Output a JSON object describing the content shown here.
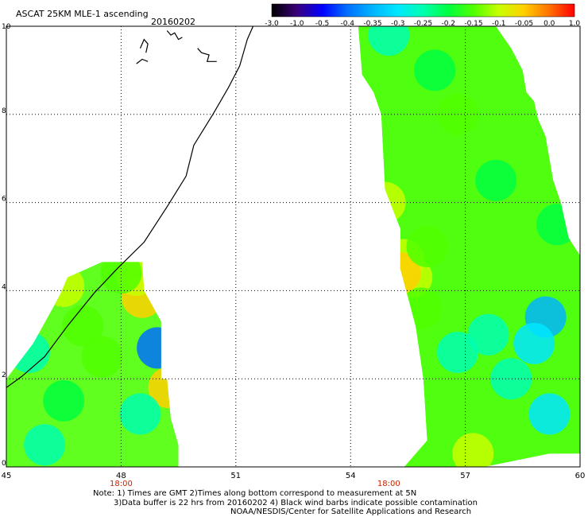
{
  "chart_data": {
    "type": "heatmap",
    "title": "ASCAT 25KM MLE-1 ascending",
    "date": "20160202",
    "colorbar": {
      "tick_labels": [
        "-3.0",
        "-1.0",
        "-0.5",
        "-0.4",
        "-0.35",
        "-0.3",
        "-0.25",
        "-0.2",
        "-0.15",
        "-0.1",
        "-0.05",
        "0.0",
        "1.0"
      ],
      "colors": [
        "#000000",
        "#3a007a",
        "#0000ff",
        "#0070ff",
        "#00b4ff",
        "#00e8ff",
        "#00ffb0",
        "#00ff40",
        "#50ff00",
        "#c8ff00",
        "#ffd000",
        "#ff7000",
        "#ff0000"
      ]
    },
    "x_axis": {
      "range": [
        45,
        60
      ],
      "ticks": [
        45,
        48,
        51,
        54,
        57,
        60
      ],
      "tick_labels": [
        "45",
        "48",
        "51",
        "54",
        "57",
        "60"
      ],
      "time_labels": [
        {
          "x": 48,
          "text": "18:00"
        },
        {
          "x": 55,
          "text": "18:00"
        }
      ],
      "time_label_color": "#cc2200"
    },
    "y_axis": {
      "range": [
        0,
        10
      ],
      "ticks": [
        0,
        2,
        4,
        6,
        8,
        10
      ],
      "tick_labels": [
        "0",
        "2",
        "4",
        "6",
        "8",
        "10"
      ]
    },
    "grid": true,
    "swaths": [
      {
        "name": "west",
        "outline": [
          [
            45,
            0
          ],
          [
            45,
            2.0
          ],
          [
            45.7,
            2.8
          ],
          [
            46.4,
            3.9
          ],
          [
            46.6,
            4.3
          ],
          [
            47.5,
            4.65
          ],
          [
            48.55,
            4.65
          ],
          [
            48.6,
            4.0
          ],
          [
            49.05,
            3.3
          ],
          [
            49.05,
            2.0
          ],
          [
            49.2,
            2.0
          ],
          [
            49.3,
            1.1
          ],
          [
            49.5,
            0.5
          ],
          [
            49.5,
            0
          ]
        ],
        "cells": [
          {
            "lon": 48.55,
            "lat": 3.85,
            "value": -0.05
          },
          {
            "lon": 48.4,
            "lat": 4.35,
            "value": -0.1
          },
          {
            "lon": 46.5,
            "lat": 4.1,
            "value": -0.1
          },
          {
            "lon": 48.0,
            "lat": 4.4,
            "value": -0.12
          },
          {
            "lon": 48.95,
            "lat": 2.7,
            "value": -0.4
          },
          {
            "lon": 49.25,
            "lat": 1.8,
            "value": -0.05
          },
          {
            "lon": 45.6,
            "lat": 2.6,
            "value": -0.25
          },
          {
            "lon": 46.0,
            "lat": 0.5,
            "value": -0.25
          },
          {
            "lon": 46.5,
            "lat": 1.5,
            "value": -0.2
          },
          {
            "lon": 48.5,
            "lat": 1.2,
            "value": -0.25
          },
          {
            "lon": 47.5,
            "lat": 2.5,
            "value": -0.15
          },
          {
            "lon": 47.0,
            "lat": 3.2,
            "value": -0.15
          }
        ]
      },
      {
        "name": "east",
        "outline": [
          [
            55.4,
            0
          ],
          [
            56.5,
            0
          ],
          [
            57.5,
            0
          ],
          [
            59.2,
            0.3
          ],
          [
            60,
            0.3
          ],
          [
            60,
            4.8
          ],
          [
            59.7,
            5.2
          ],
          [
            59.5,
            6.0
          ],
          [
            59.3,
            6.5
          ],
          [
            59.1,
            7.5
          ],
          [
            58.9,
            7.9
          ],
          [
            58.8,
            8.3
          ],
          [
            58.6,
            8.5
          ],
          [
            58.5,
            9.0
          ],
          [
            58.2,
            9.5
          ],
          [
            57.8,
            10
          ],
          [
            56.0,
            10
          ],
          [
            54.2,
            10
          ],
          [
            54.3,
            8.9
          ],
          [
            54.6,
            8.5
          ],
          [
            54.8,
            8.0
          ],
          [
            54.9,
            6.3
          ],
          [
            55.3,
            5.4
          ],
          [
            55.3,
            4.5
          ],
          [
            55.7,
            3.2
          ],
          [
            55.9,
            2.0
          ],
          [
            56.0,
            0.6
          ]
        ],
        "cells": [
          {
            "lon": 55.4,
            "lat": 4.7,
            "value": -0.1
          },
          {
            "lon": 55.6,
            "lat": 4.3,
            "value": -0.1
          },
          {
            "lon": 55.3,
            "lat": 4.4,
            "value": -0.05
          },
          {
            "lon": 55.85,
            "lat": 3.6,
            "value": -0.12
          },
          {
            "lon": 56.0,
            "lat": 5.0,
            "value": -0.15
          },
          {
            "lon": 56.8,
            "lat": 8.0,
            "value": -0.15
          },
          {
            "lon": 56.2,
            "lat": 9.0,
            "value": -0.2
          },
          {
            "lon": 54.9,
            "lat": 6.0,
            "value": -0.1
          },
          {
            "lon": 57.2,
            "lat": 0.3,
            "value": -0.1
          },
          {
            "lon": 59.1,
            "lat": 3.4,
            "value": -0.35
          },
          {
            "lon": 58.8,
            "lat": 2.8,
            "value": -0.3
          },
          {
            "lon": 58.2,
            "lat": 2.0,
            "value": -0.25
          },
          {
            "lon": 59.2,
            "lat": 1.2,
            "value": -0.3
          },
          {
            "lon": 56.8,
            "lat": 2.6,
            "value": -0.25
          },
          {
            "lon": 57.6,
            "lat": 3.0,
            "value": -0.25
          },
          {
            "lon": 55.0,
            "lat": 9.8,
            "value": -0.25
          },
          {
            "lon": 59.4,
            "lat": 5.5,
            "value": -0.2
          },
          {
            "lon": 57.8,
            "lat": 6.5,
            "value": -0.2
          }
        ]
      }
    ],
    "coastline": [
      [
        45,
        1.8
      ],
      [
        45.4,
        2.05
      ],
      [
        46.0,
        2.5
      ],
      [
        46.6,
        3.2
      ],
      [
        47.3,
        3.95
      ],
      [
        47.9,
        4.5
      ],
      [
        48.6,
        5.1
      ],
      [
        49.2,
        5.9
      ],
      [
        49.7,
        6.6
      ],
      [
        49.9,
        7.3
      ],
      [
        50.4,
        8.0
      ],
      [
        50.8,
        8.6
      ],
      [
        51.1,
        9.1
      ],
      [
        51.3,
        9.7
      ],
      [
        51.45,
        10.0
      ]
    ],
    "islands": [
      [
        [
          48.5,
          9.5
        ],
        [
          48.6,
          9.7
        ],
        [
          48.7,
          9.6
        ],
        [
          48.65,
          9.4
        ]
      ],
      [
        [
          49.2,
          9.9
        ],
        [
          49.3,
          9.8
        ],
        [
          49.4,
          9.85
        ],
        [
          49.5,
          9.7
        ],
        [
          49.6,
          9.75
        ]
      ],
      [
        [
          50.0,
          9.5
        ],
        [
          50.1,
          9.4
        ],
        [
          50.3,
          9.35
        ],
        [
          50.25,
          9.2
        ],
        [
          50.5,
          9.2
        ]
      ],
      [
        [
          48.4,
          9.15
        ],
        [
          48.55,
          9.25
        ],
        [
          48.7,
          9.2
        ]
      ]
    ]
  },
  "notes": {
    "line1": "Note: 1) Times are GMT 2)Times along bottom correspond to measurement at 5N",
    "line2": "3)Data buffer is 22 hrs from 20160202 4) Black wind barbs indicate possible contamination",
    "line3": "NOAA/NESDIS/Center for Satellite Applications and Research"
  }
}
